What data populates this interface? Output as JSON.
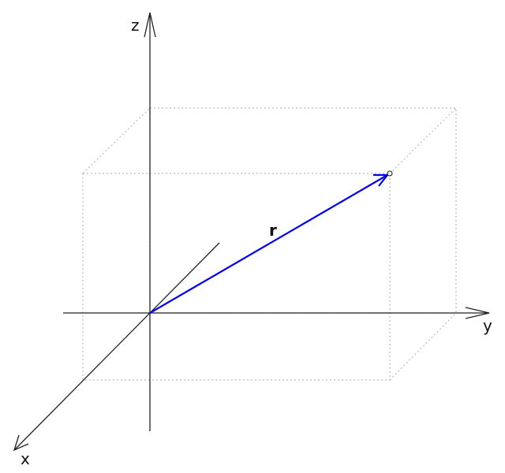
{
  "diagram": {
    "axes": {
      "x_label": "x",
      "y_label": "y",
      "z_label": "z"
    },
    "vector": {
      "label": "r",
      "color": "#0000ee"
    },
    "axis_color": "#222222",
    "box_color": "#bbbbbb"
  }
}
